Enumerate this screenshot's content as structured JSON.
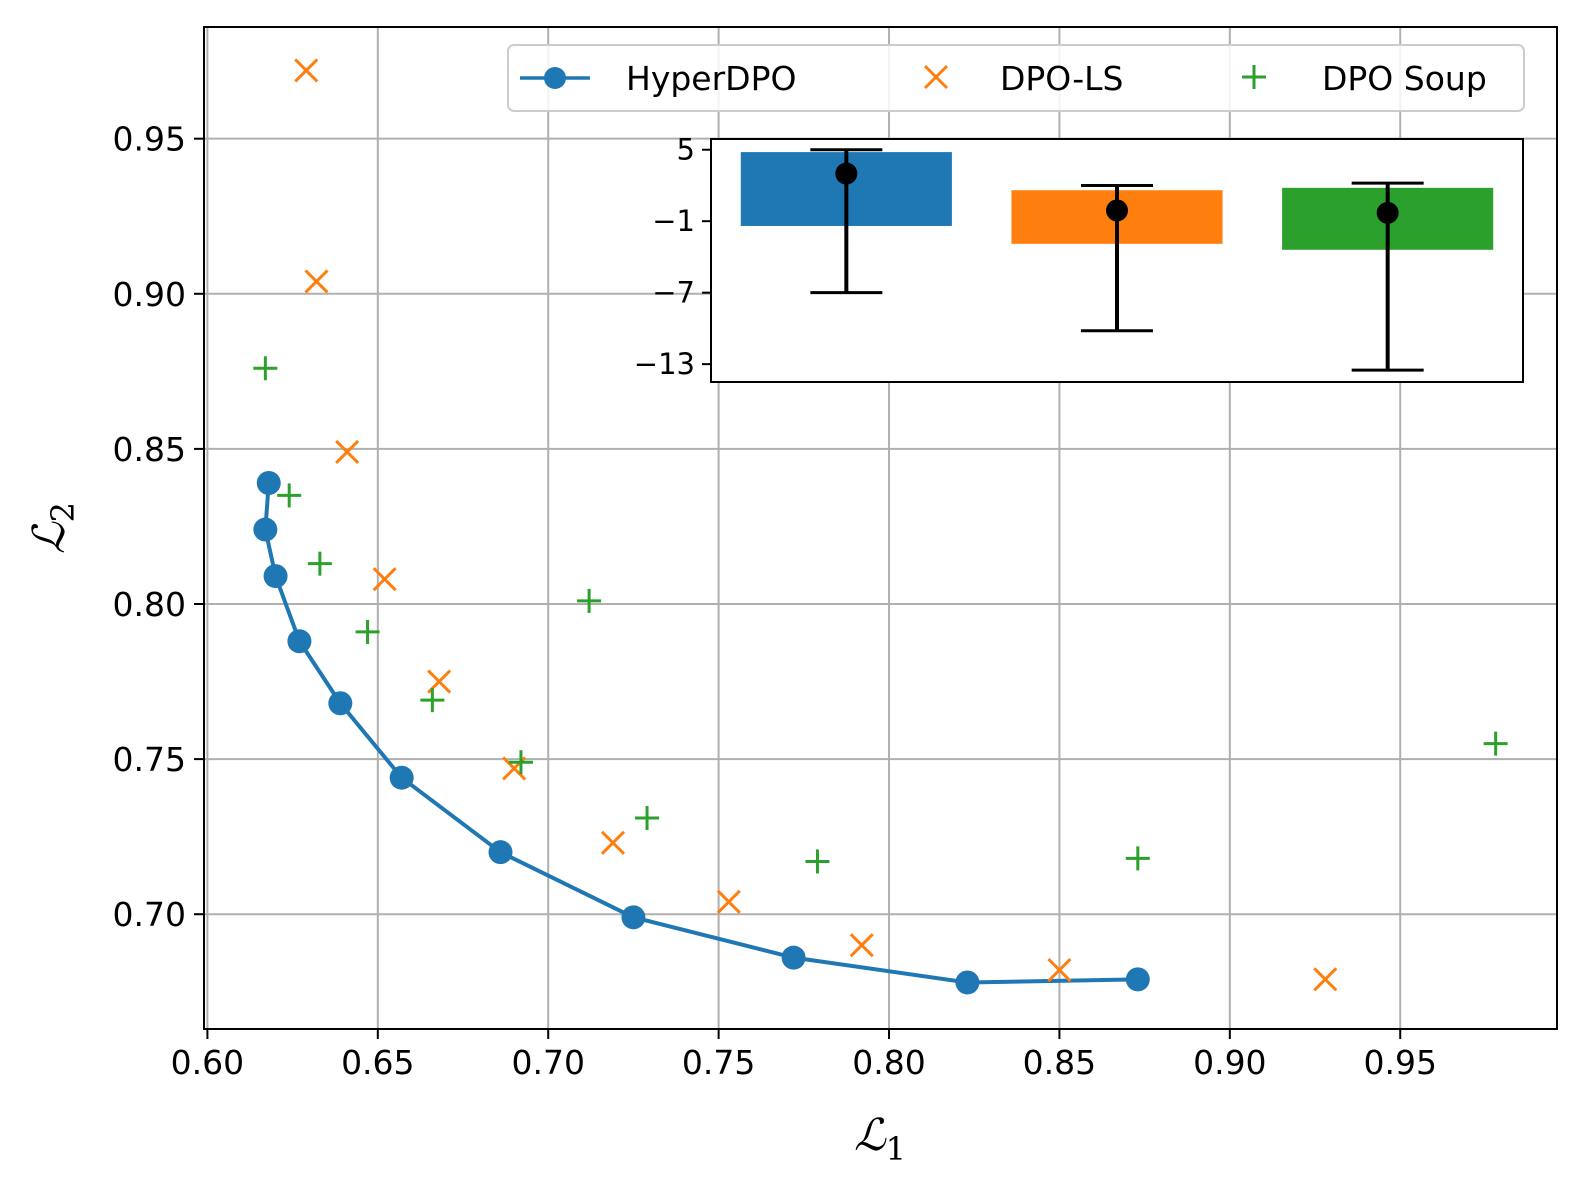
{
  "chart_data": [
    {
      "type": "scatter",
      "xlabel": "ℒ",
      "xlabel_sub": "1",
      "ylabel": "ℒ",
      "ylabel_sub": "2",
      "xlim": [
        0.599,
        0.996
      ],
      "ylim": [
        0.663,
        0.986
      ],
      "xticks": [
        0.6,
        0.65,
        0.7,
        0.75,
        0.8,
        0.85,
        0.9,
        0.95
      ],
      "xtick_labels": [
        "0.60",
        "0.65",
        "0.70",
        "0.75",
        "0.80",
        "0.85",
        "0.90",
        "0.95"
      ],
      "yticks": [
        0.7,
        0.75,
        0.8,
        0.85,
        0.9,
        0.95
      ],
      "ytick_labels": [
        "0.70",
        "0.75",
        "0.80",
        "0.85",
        "0.90",
        "0.95"
      ],
      "grid": true,
      "legend_position": "top-right",
      "series": [
        {
          "name": "HyperDPO",
          "marker": "circle-line",
          "color": "#1f77b4",
          "x": [
            0.618,
            0.617,
            0.62,
            0.627,
            0.639,
            0.657,
            0.686,
            0.725,
            0.772,
            0.823,
            0.873
          ],
          "y": [
            0.839,
            0.824,
            0.809,
            0.788,
            0.768,
            0.744,
            0.72,
            0.699,
            0.686,
            0.678,
            0.679
          ]
        },
        {
          "name": "DPO-LS",
          "marker": "x",
          "color": "#ff7f0e",
          "x": [
            0.629,
            0.632,
            0.641,
            0.652,
            0.668,
            0.69,
            0.719,
            0.753,
            0.792,
            0.85,
            0.928
          ],
          "y": [
            0.972,
            0.904,
            0.849,
            0.808,
            0.775,
            0.747,
            0.723,
            0.704,
            0.69,
            0.682,
            0.679
          ]
        },
        {
          "name": "DPO Soup",
          "marker": "plus",
          "color": "#2ca02c",
          "x": [
            0.617,
            0.624,
            0.633,
            0.647,
            0.666,
            0.692,
            0.712,
            0.729,
            0.779,
            0.873,
            0.978
          ],
          "y": [
            0.876,
            0.835,
            0.813,
            0.791,
            0.769,
            0.749,
            0.801,
            0.731,
            0.717,
            0.718,
            0.755
          ]
        }
      ]
    },
    {
      "type": "bar",
      "title": "",
      "categories": [
        "HyperDPO",
        "DPO-LS",
        "DPO Soup"
      ],
      "values": [
        4.8,
        1.6,
        1.8
      ],
      "bar_bottoms": [
        -1.4,
        -2.9,
        -3.4
      ],
      "mean": [
        3.0,
        -0.1,
        -0.3
      ],
      "error_low": [
        -7.0,
        -10.2,
        -13.5
      ],
      "error_high": [
        5.0,
        2.0,
        2.2
      ],
      "colors": [
        "#1f77b4",
        "#ff7f0e",
        "#2ca02c"
      ],
      "ylim": [
        -14.5,
        5.9
      ],
      "yticks": [
        5,
        -1,
        -7,
        -13
      ],
      "ytick_labels": [
        "5",
        "−1",
        "−7",
        "−13"
      ]
    }
  ]
}
